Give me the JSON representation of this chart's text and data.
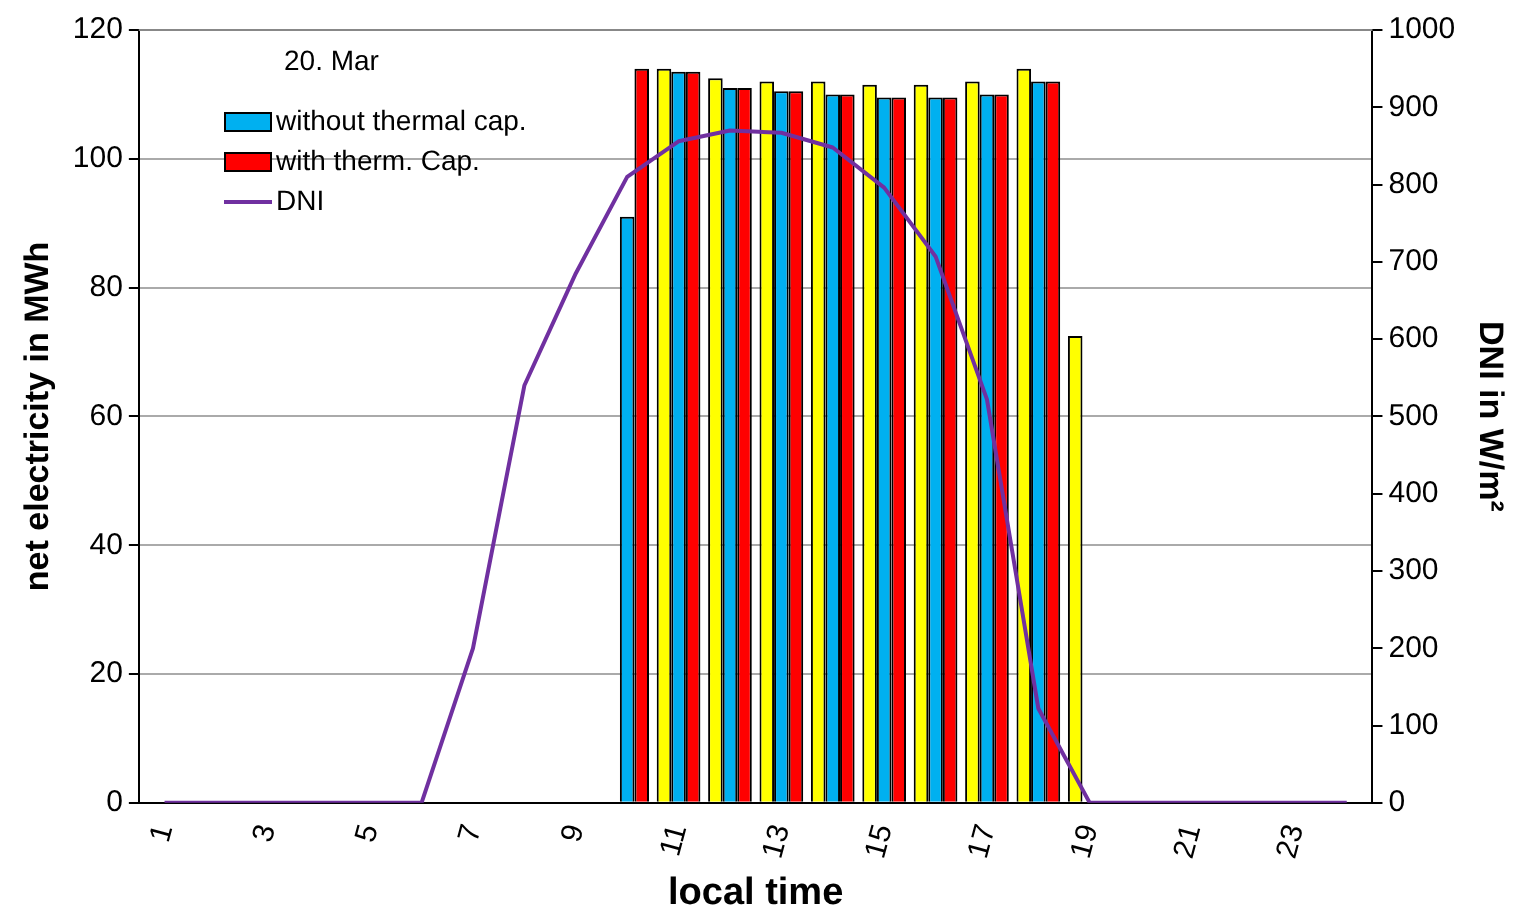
{
  "chart_data": {
    "type": "bar",
    "xlabel": "local time",
    "ylabel": "net electricity in MWh",
    "y2label": "DNI in W/m²",
    "legend_title": "20. Mar",
    "legend": "top left",
    "grid": "y",
    "categories": [
      "1",
      null,
      "3",
      null,
      "5",
      null,
      "7",
      null,
      "9",
      null,
      "11",
      null,
      "13",
      null,
      "15",
      null,
      "17",
      null,
      "19",
      null,
      "21",
      null,
      "23",
      null
    ],
    "ylim": [
      0,
      120
    ],
    "yticks": [
      0,
      20,
      40,
      60,
      80,
      100,
      120
    ],
    "y2lim": [
      0,
      1000
    ],
    "y2ticks": [
      0,
      100,
      200,
      300,
      400,
      500,
      600,
      700,
      800,
      900,
      1000
    ],
    "series": [
      {
        "color": "#ffff00",
        "values": [
          0,
          0,
          0,
          0,
          0,
          0,
          0,
          0,
          0,
          0,
          114,
          112.5,
          112,
          112,
          111.5,
          111.5,
          112,
          114,
          72.5,
          0,
          0,
          0,
          0,
          0
        ]
      },
      {
        "name": "without thermal cap.",
        "color": "#00b0f0",
        "values": [
          0,
          0,
          0,
          0,
          0,
          0,
          0,
          0,
          0,
          91,
          113.5,
          111,
          110.5,
          110,
          109.5,
          109.5,
          110,
          112,
          0,
          0,
          0,
          0,
          0,
          0
        ]
      },
      {
        "name": "with therm. Cap.",
        "color": "#ff0000",
        "values": [
          0,
          0,
          0,
          0,
          0,
          0,
          0,
          0,
          0,
          114,
          113.5,
          111,
          110.5,
          110,
          109.5,
          109.5,
          110,
          112,
          0,
          0,
          0,
          0,
          0,
          0
        ]
      },
      {
        "name": "DNI",
        "type": "line",
        "axis": "y2",
        "color": "#7030a0",
        "marker": "none",
        "values": [
          0,
          0,
          0,
          0,
          0,
          0,
          200,
          540,
          685,
          810,
          856,
          870,
          867,
          848,
          796,
          707,
          522,
          122,
          0,
          0,
          0,
          0,
          0,
          0
        ]
      }
    ]
  }
}
